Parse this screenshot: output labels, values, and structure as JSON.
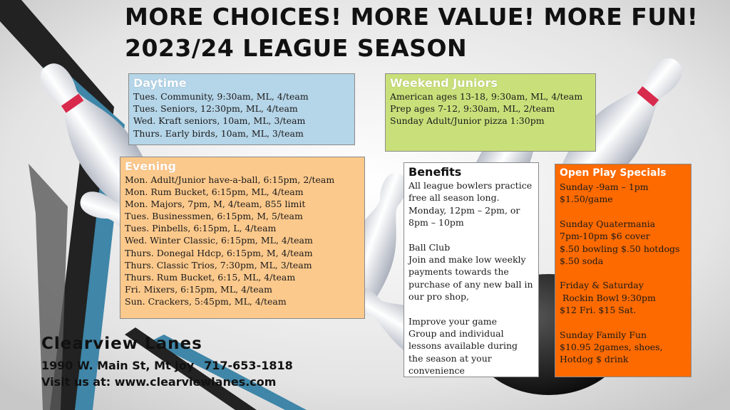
{
  "header": {
    "line1": "MORE CHOICES! MORE VALUE! MORE FUN!",
    "line2": "2023/24 LEAGUE SEASON"
  },
  "daytime": {
    "title": "Daytime",
    "items": [
      "Tues. Community, 9:30am, ML, 4/team",
      "Tues. Seniors, 12:30pm, ML, 4/team",
      "Wed. Kraft seniors, 10am, ML, 3/team",
      "Thurs. Early birds, 10am, ML, 3/team"
    ]
  },
  "weekend": {
    "title": "Weekend Juniors",
    "items": [
      "American ages 13-18, 9:30am, ML, 4/team",
      "Prep ages 7-12, 9:30am, ML, 2/team",
      "Sunday Adult/Junior pizza 1:30pm"
    ]
  },
  "evening": {
    "title": "Evening",
    "items": [
      "Mon. Adult/Junior have-a-ball, 6:15pm, 2/team",
      "Mon. Rum Bucket, 6:15pm, ML, 4/team",
      "Mon. Majors, 7pm, M, 4/team, 855 limit",
      "Tues. Businessmen, 6:15pm, M, 5/team",
      "Tues. Pinbells, 6:15pm, L, 4/team",
      "Wed. Winter Classic, 6:15pm, ML, 4/team",
      "Thurs. Donegal Hdcp, 6:15pm, M, 4/team",
      "Thurs. Classic Trios, 7:30pm, ML, 3/team",
      "Thurs. Rum Bucket, 6:15, ML, 4/team",
      "Fri. Mixers, 6:15pm, ML, 4/team",
      "Sun. Crackers, 5:45pm, ML, 4/team"
    ]
  },
  "benefits": {
    "title": "Benefits",
    "practice": "All league bowlers practice free all season long. Monday, 12pm – 2pm, or 8pm – 10pm",
    "ball_club_title": "Ball Club",
    "ball_club": "Join and make low weekly payments towards the purchase of any new ball in our pro shop,",
    "improve_title": "Improve your game",
    "improve": "Group and individual lessons available during the season at your convenience"
  },
  "openplay": {
    "title": "Open Play Specials",
    "sunday_time": "Sunday -9am – 1pm",
    "sunday_price": "$1.50/game",
    "quater_title": "Sunday Quatermania",
    "quater_1": "7pm-10pm $6 cover",
    "quater_2": "$.50 bowling $.50 hotdogs",
    "quater_3": "$.50 soda",
    "friday_title": "Friday & Saturday",
    "friday_1": "Rockin Bowl 9:30pm",
    "friday_2": "$12 Fri. $15 Sat.",
    "family_title": "Sunday Family Fun",
    "family_1": "$10.95 2games, shoes,",
    "family_2": "Hotdog $ drink"
  },
  "footer": {
    "name": "Clearview Lanes",
    "address": "1990 W. Main St, Mt joy",
    "phone": "717-653-1818",
    "website": "Visit us at: www.clearviewlanes.com"
  },
  "colors": {
    "daytime_bg": "#b5d5e8",
    "weekend_bg": "#c9e07a",
    "evening_bg": "#fcc98c",
    "openplay_bg": "#fd6a00",
    "stripe_blue": "#3f86a8"
  }
}
